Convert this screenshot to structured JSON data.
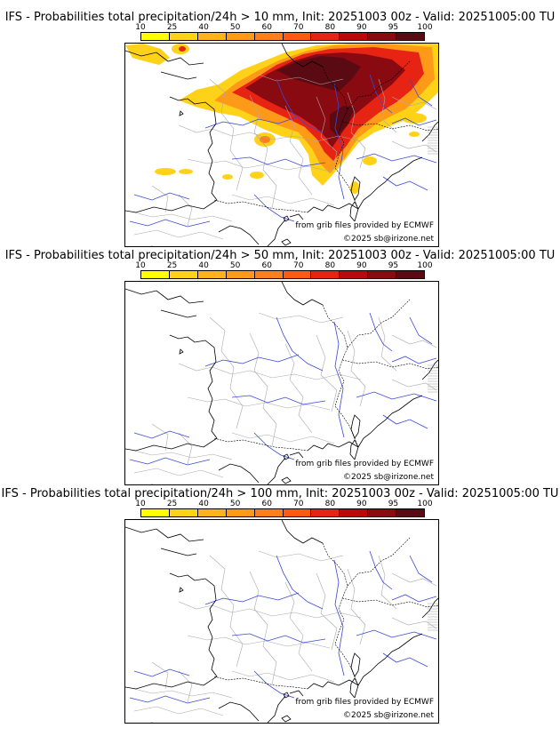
{
  "colorbar": {
    "ticks": [
      "10",
      "25",
      "40",
      "50",
      "60",
      "70",
      "80",
      "90",
      "95",
      "100"
    ],
    "colors": [
      "#ffff00",
      "#ffd21a",
      "#ffb219",
      "#ff9a19",
      "#ff7f1a",
      "#ff5b10",
      "#e72314",
      "#b8090e",
      "#8a0a12",
      "#5a0a12"
    ]
  },
  "panels": [
    {
      "title": "IFS - Probabilities total precipitation/24h > 10 mm, Init: 20251003 00z - Valid: 20251005:00 TU",
      "source": "from grib files provided by ECMWF",
      "copyright": "©2025 sb@irizone.net"
    },
    {
      "title": "IFS - Probabilities total precipitation/24h > 50 mm, Init: 20251003 00z - Valid: 20251005:00 TU",
      "source": "from grib files provided by ECMWF",
      "copyright": "©2025 sb@irizone.net"
    },
    {
      "title": "IFS - Probabilities total precipitation/24h > 100 mm, Init: 20251003 00z - Valid: 20251005:00 TU",
      "source": "from grib files provided by ECMWF",
      "copyright": "©2025 sb@irizone.net"
    }
  ]
}
